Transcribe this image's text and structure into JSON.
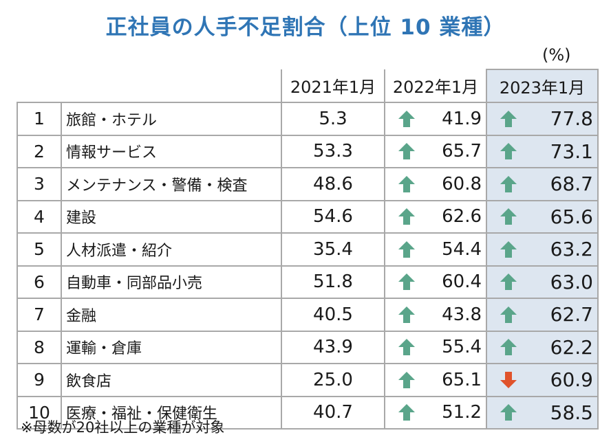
{
  "title": "正社員の人手不足割合（上位 10 業種）",
  "unit": "(%)",
  "footnote": "※母数が20社以上の業種が対象",
  "colors": {
    "title": "#2f75b5",
    "up_arrow": "#5aa58a",
    "down_arrow": "#e0532b",
    "highlight_col": "#dde6f0"
  },
  "chart_data": {
    "type": "table",
    "title": "正社員の人手不足割合（上位 10 業種）",
    "unit": "(%)",
    "columns": [
      "2021年1月",
      "2022年1月",
      "2023年1月"
    ],
    "rows": [
      {
        "rank": "1",
        "industry": "旅館・ホテル",
        "v2021": "5.3",
        "v2022": "41.9",
        "t2022": "up",
        "v2023": "77.8",
        "t2023": "up"
      },
      {
        "rank": "2",
        "industry": "情報サービス",
        "v2021": "53.3",
        "v2022": "65.7",
        "t2022": "up",
        "v2023": "73.1",
        "t2023": "up"
      },
      {
        "rank": "3",
        "industry": "メンテナンス・警備・検査",
        "v2021": "48.6",
        "v2022": "60.8",
        "t2022": "up",
        "v2023": "68.7",
        "t2023": "up"
      },
      {
        "rank": "4",
        "industry": "建設",
        "v2021": "54.6",
        "v2022": "62.6",
        "t2022": "up",
        "v2023": "65.6",
        "t2023": "up"
      },
      {
        "rank": "5",
        "industry": "人材派遣・紹介",
        "v2021": "35.4",
        "v2022": "54.4",
        "t2022": "up",
        "v2023": "63.2",
        "t2023": "up"
      },
      {
        "rank": "6",
        "industry": "自動車・同部品小売",
        "v2021": "51.8",
        "v2022": "60.4",
        "t2022": "up",
        "v2023": "63.0",
        "t2023": "up"
      },
      {
        "rank": "7",
        "industry": "金融",
        "v2021": "40.5",
        "v2022": "43.8",
        "t2022": "up",
        "v2023": "62.7",
        "t2023": "up"
      },
      {
        "rank": "8",
        "industry": "運輸・倉庫",
        "v2021": "43.9",
        "v2022": "55.4",
        "t2022": "up",
        "v2023": "62.2",
        "t2023": "up"
      },
      {
        "rank": "9",
        "industry": "飲食店",
        "v2021": "25.0",
        "v2022": "65.1",
        "t2022": "up",
        "v2023": "60.9",
        "t2023": "down"
      },
      {
        "rank": "10",
        "industry": "医療・福祉・保健衛生",
        "v2021": "40.7",
        "v2022": "51.2",
        "t2022": "up",
        "v2023": "58.5",
        "t2023": "up"
      }
    ]
  }
}
